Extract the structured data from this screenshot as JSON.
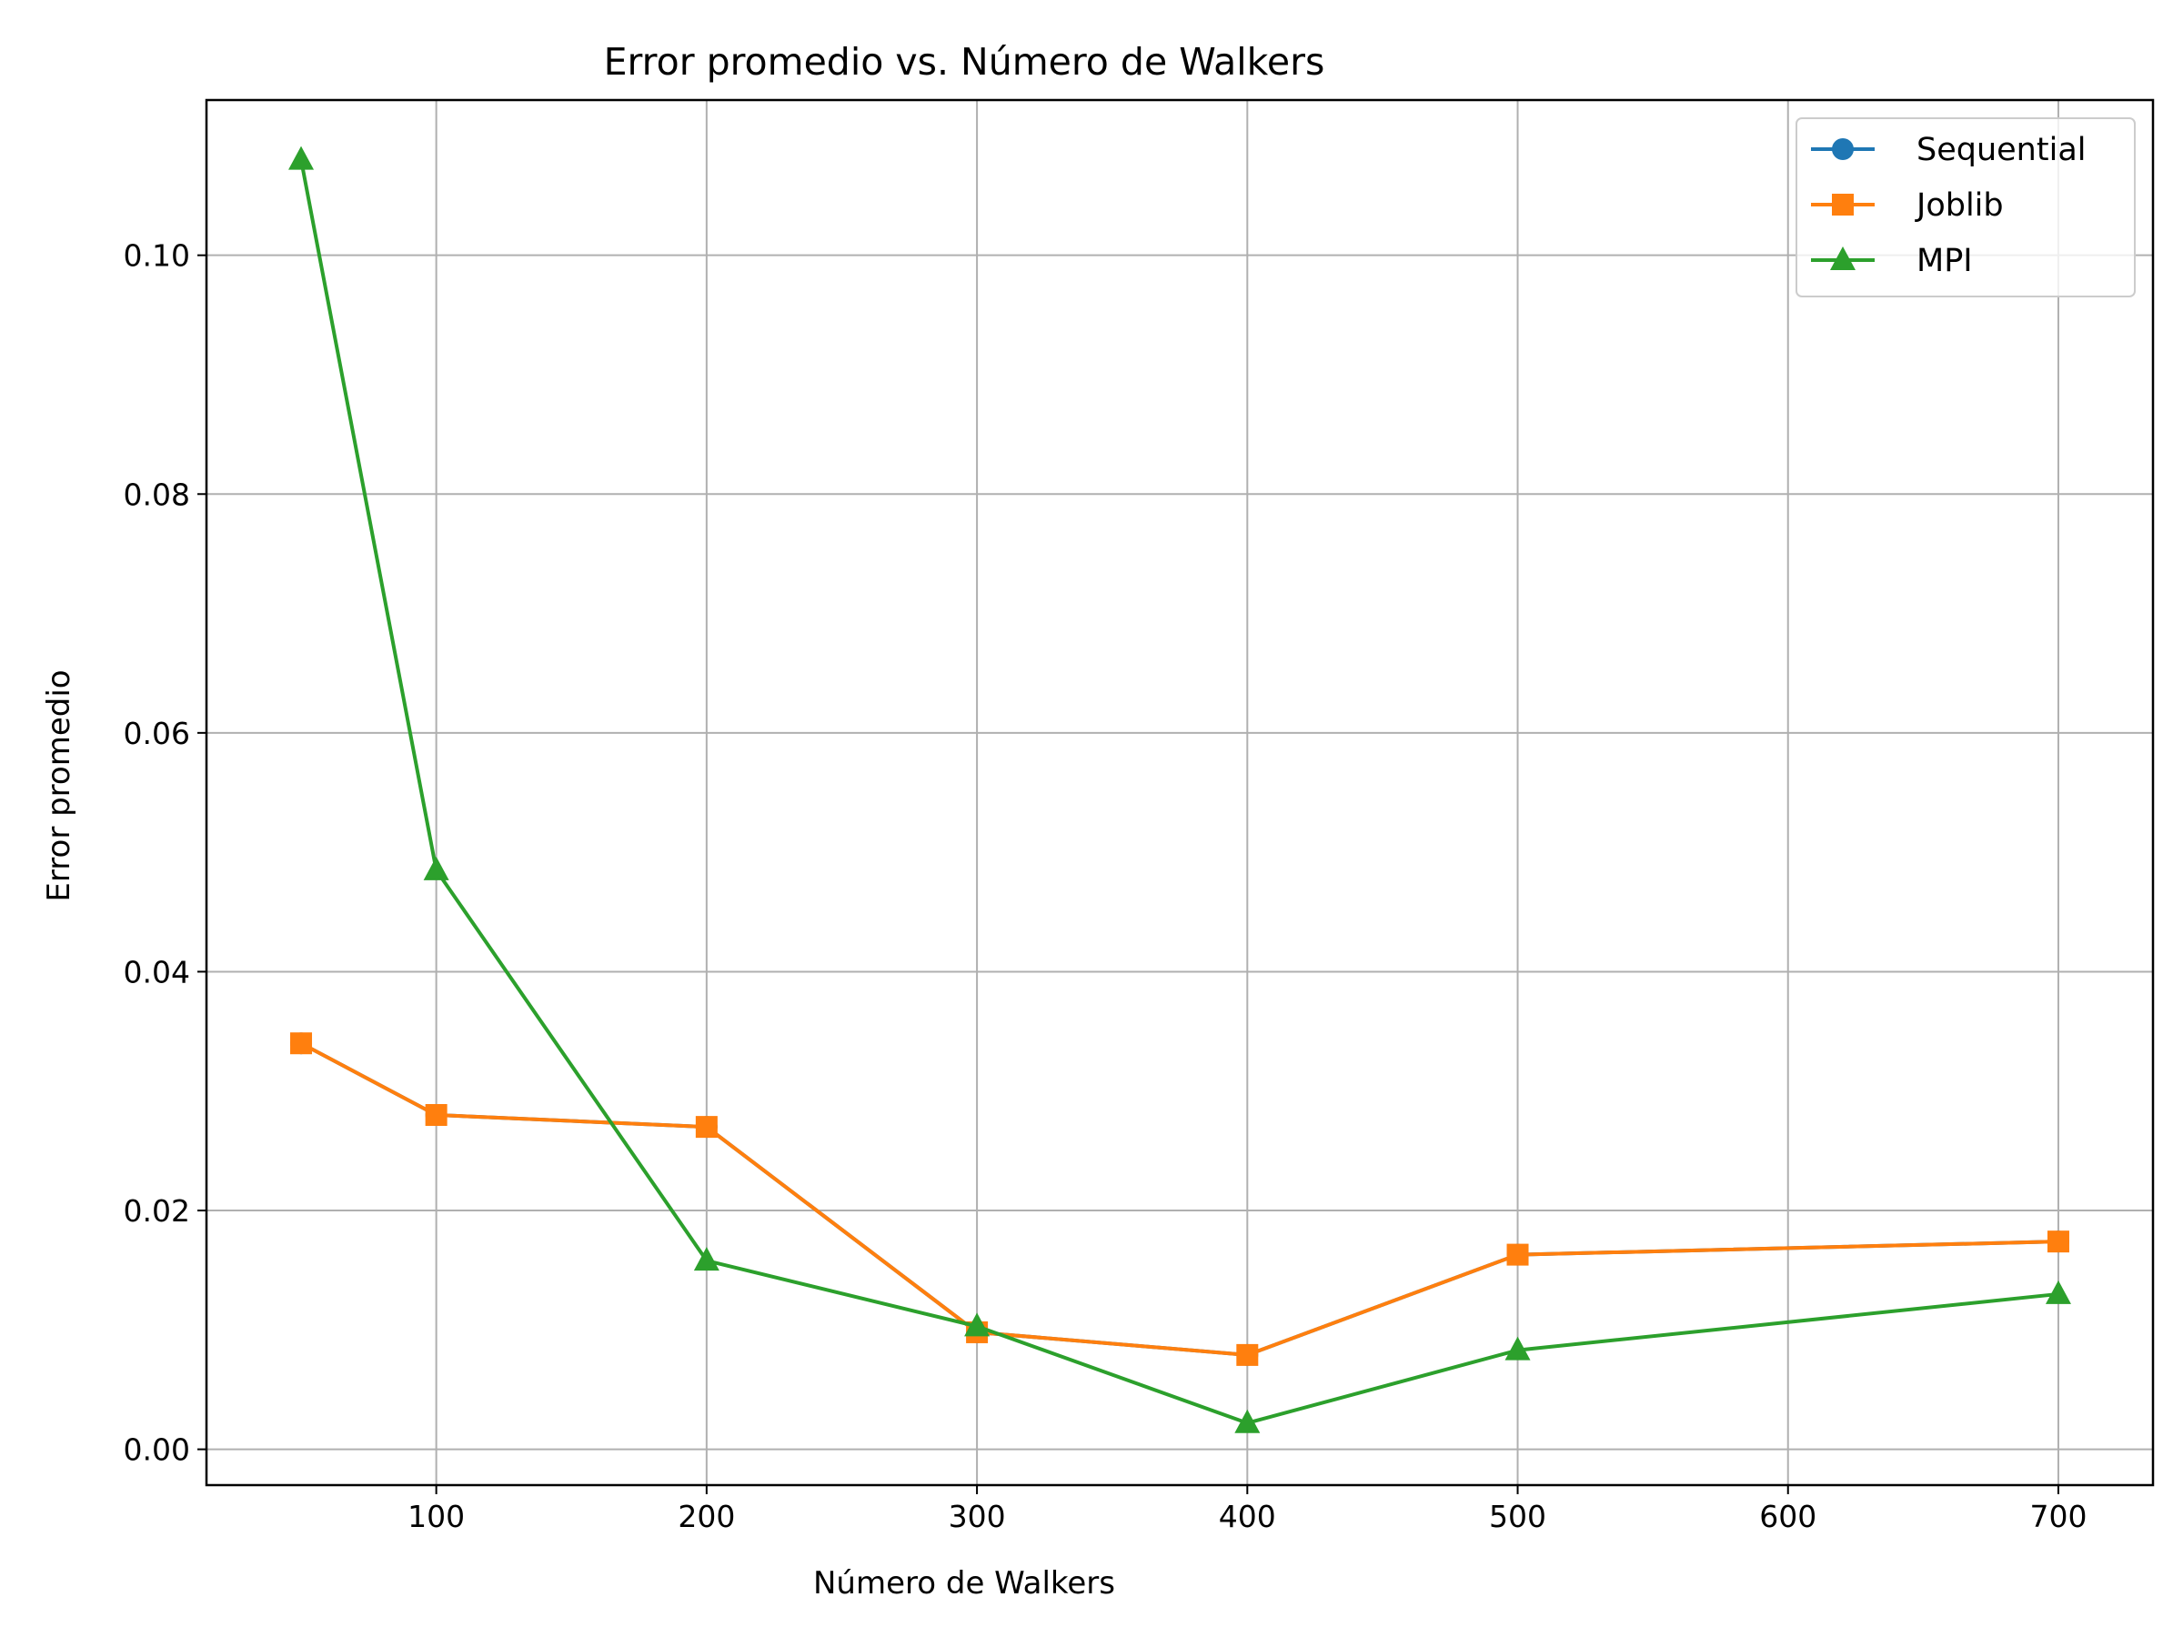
{
  "chart_data": {
    "type": "line",
    "title": "Error promedio vs. Número de Walkers",
    "xlabel": "Número de Walkers",
    "ylabel": "Error promedio",
    "x": [
      50,
      100,
      200,
      300,
      400,
      500,
      700
    ],
    "xlim": [
      15,
      735
    ],
    "ylim": [
      -0.003,
      0.113
    ],
    "xticks": [
      100,
      200,
      300,
      400,
      500,
      600,
      700
    ],
    "yticks": [
      0.0,
      0.02,
      0.04,
      0.06,
      0.08,
      0.1
    ],
    "ytick_labels": [
      "0.00",
      "0.02",
      "0.04",
      "0.06",
      "0.08",
      "0.10"
    ],
    "grid": true,
    "legend_position": "top-right",
    "series": [
      {
        "name": "Sequential",
        "color": "#1f77b4",
        "marker": "circle",
        "values": [
          0.034,
          0.028,
          0.027,
          0.0098,
          0.0079,
          0.0163,
          0.0174
        ]
      },
      {
        "name": "Joblib",
        "color": "#ff7f0e",
        "marker": "square",
        "values": [
          0.034,
          0.028,
          0.027,
          0.0098,
          0.0079,
          0.0163,
          0.0174
        ]
      },
      {
        "name": "MPI",
        "color": "#2ca02c",
        "marker": "triangle",
        "values": [
          0.108,
          0.0485,
          0.0158,
          0.0103,
          0.0022,
          0.0083,
          0.013
        ]
      }
    ]
  }
}
